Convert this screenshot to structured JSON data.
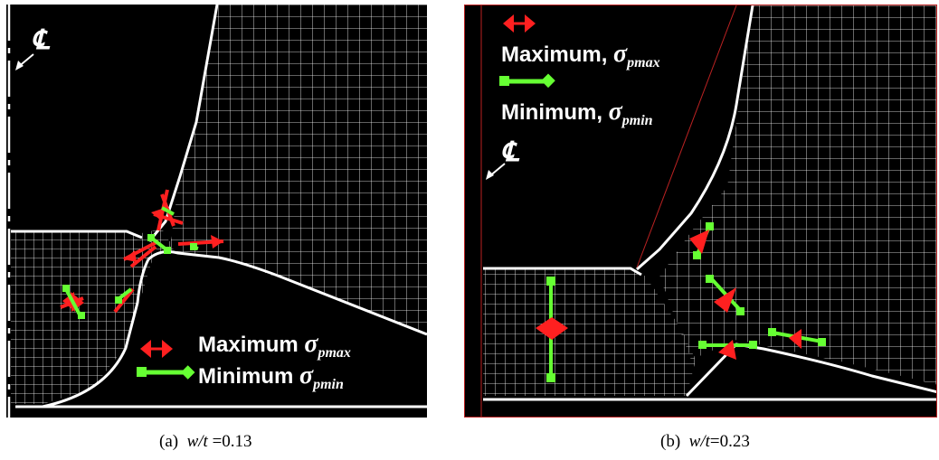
{
  "panel_a": {
    "caption_label": "(a)",
    "caption_ratio": "w/t",
    "caption_value": "=0.13",
    "centerline_label": "℄",
    "legend": {
      "max_word": "Maximum",
      "max_symbol": "σ",
      "max_sub": "pmax",
      "min_word": "Minimum",
      "min_symbol": "σ",
      "min_sub": "pmin"
    }
  },
  "panel_b": {
    "caption_label": "(b)",
    "caption_ratio": "w/t",
    "caption_value": "=0.23",
    "centerline_label": "℄",
    "legend": {
      "max_word": "Maximum,",
      "max_symbol": "σ",
      "max_sub": "pmax",
      "min_word": "Minimum,",
      "min_symbol": "σ",
      "min_sub": "pmin"
    }
  },
  "colors": {
    "background": "#000000",
    "mesh": "#ffffff",
    "maximum_arrow": "#ff2020",
    "minimum_arrow": "#66ff33"
  }
}
